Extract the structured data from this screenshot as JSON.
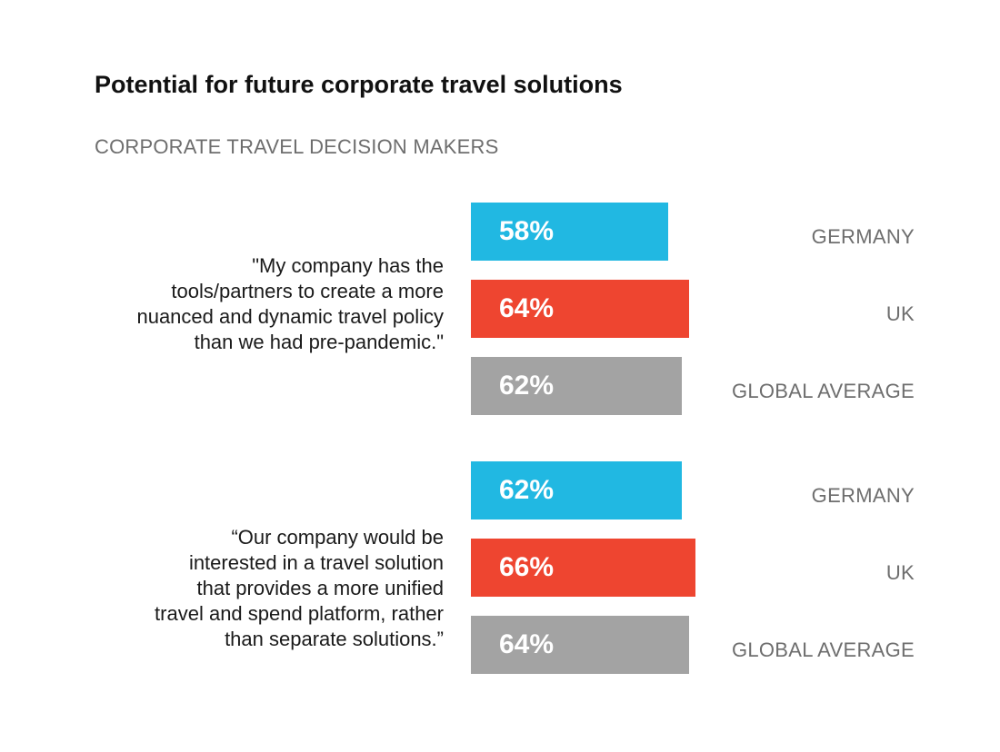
{
  "title": "Potential for future corporate travel solutions",
  "subtitle": "CORPORATE TRAVEL DECISION MAKERS",
  "colors": {
    "germany": "#21b8e2",
    "uk": "#ee4530",
    "global": "#a3a3a3"
  },
  "chart_data": {
    "type": "bar",
    "orientation": "horizontal",
    "title": "Potential for future corporate travel solutions",
    "subtitle": "CORPORATE TRAVEL DECISION MAKERS",
    "unit": "%",
    "xlim": [
      0,
      100
    ],
    "grid": false,
    "groups": [
      {
        "question": "\"My company has the tools/partners to create a more nuanced and dynamic travel policy than we had pre-pandemic.\"",
        "question_lines": [
          "\"My company has the",
          "tools/partners to create a more",
          "nuanced and dynamic travel policy",
          "than we had pre-pandemic.\""
        ],
        "bars": [
          {
            "series": "GERMANY",
            "value": 58,
            "label": "58%"
          },
          {
            "series": "UK",
            "value": 64,
            "label": "64%"
          },
          {
            "series": "GLOBAL AVERAGE",
            "value": 62,
            "label": "62%"
          }
        ]
      },
      {
        "question": "“Our company would be interested in a travel solution that provides a more unified travel and spend platform, rather than separate solutions.”",
        "question_lines": [
          "“Our company would be",
          "interested in a travel solution",
          "that provides a more unified",
          "travel and spend platform, rather",
          "than separate solutions.”"
        ],
        "bars": [
          {
            "series": "GERMANY",
            "value": 62,
            "label": "62%"
          },
          {
            "series": "UK",
            "value": 66,
            "label": "66%"
          },
          {
            "series": "GLOBAL AVERAGE",
            "value": 64,
            "label": "64%"
          }
        ]
      }
    ]
  }
}
